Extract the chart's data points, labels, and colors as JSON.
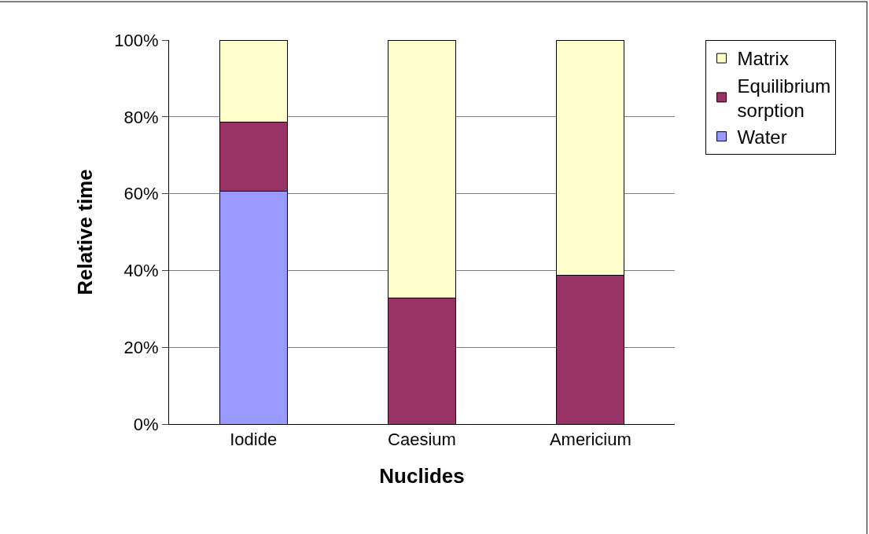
{
  "chart_data": {
    "type": "bar",
    "stacked": true,
    "xlabel": "Nuclides",
    "ylabel": "Relative time",
    "categories": [
      "Iodide",
      "Caesium",
      "Americium"
    ],
    "series": [
      {
        "name": "Water",
        "color": "#9999ff",
        "values": [
          60.7,
          0,
          0
        ]
      },
      {
        "name": "Equilibrium sorption",
        "color": "#993366",
        "values": [
          18.0,
          32.9,
          38.7
        ]
      },
      {
        "name": "Matrix",
        "color": "#ffffcc",
        "values": [
          21.3,
          67.1,
          61.3
        ]
      }
    ],
    "ylim": [
      0,
      100
    ],
    "yticks": [
      {
        "value": 0,
        "label": "0%"
      },
      {
        "value": 20,
        "label": "20%"
      },
      {
        "value": 40,
        "label": "40%"
      },
      {
        "value": 60,
        "label": "60%"
      },
      {
        "value": 80,
        "label": "80%"
      },
      {
        "value": 100,
        "label": "100%"
      }
    ],
    "grid": "y",
    "legend": "top right"
  }
}
